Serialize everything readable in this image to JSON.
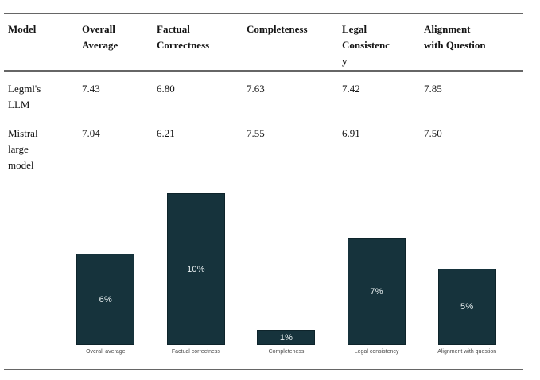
{
  "table": {
    "columns": [
      {
        "label": "Model"
      },
      {
        "label": "Overall\nAverage"
      },
      {
        "label": "Factual\nCorrectness"
      },
      {
        "label": "Completeness"
      },
      {
        "label": "Legal\nConsistenc\ny"
      },
      {
        "label": "Alignment\nwith Question"
      }
    ],
    "rows": [
      {
        "model": "Legml's\nLLM",
        "values": [
          "7.43",
          "6.80",
          "7.63",
          "7.42",
          "7.85"
        ]
      },
      {
        "model": "Mistral\nlarge\nmodel",
        "values": [
          "7.04",
          "6.21",
          "7.55",
          "6.91",
          "7.50"
        ]
      }
    ]
  },
  "chart_data": {
    "type": "bar",
    "categories": [
      "Overall average",
      "Factual correctness",
      "Completeness",
      "Legal consistency",
      "Alignment with question"
    ],
    "values": [
      6,
      10,
      1,
      7,
      5
    ],
    "value_labels": [
      "6%",
      "10%",
      "1%",
      "7%",
      "5%"
    ],
    "title": "",
    "xlabel": "",
    "ylabel": "",
    "ylim": [
      0,
      10
    ],
    "grid": false,
    "legend": "none",
    "bar_color": "#16333c",
    "value_label_color": "#e9f0f1",
    "category_label_color": "#4a4a4a"
  }
}
